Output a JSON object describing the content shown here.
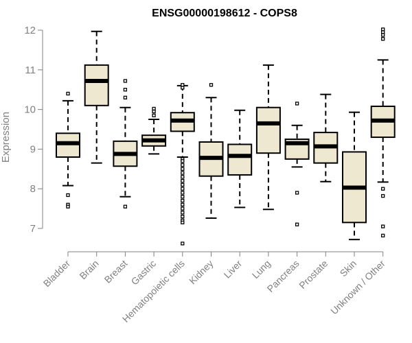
{
  "chart_data": {
    "type": "boxplot",
    "title": "ENSG00000198612 - COPS8",
    "ylabel": "Expression",
    "xlabel": "",
    "ylim": [
      6.5,
      12.25
    ],
    "yticks": [
      7,
      8,
      9,
      10,
      11,
      12
    ],
    "box_fill": "#efe8d0",
    "box_stroke": "#000000",
    "categories": [
      "Bladder",
      "Brain",
      "Breast",
      "Gastric",
      "Hematopoietic cells",
      "Kidney",
      "Liver",
      "Lung",
      "Pancreas",
      "Prostate",
      "Skin",
      "Unknown / Other"
    ],
    "boxes": [
      {
        "name": "Bladder",
        "whisker_low": 8.08,
        "q1": 8.8,
        "median": 9.15,
        "q3": 9.4,
        "whisker_high": 10.22,
        "outliers": [
          10.4,
          7.84,
          7.6,
          7.55
        ]
      },
      {
        "name": "Brain",
        "whisker_low": 8.65,
        "q1": 10.1,
        "median": 10.72,
        "q3": 11.12,
        "whisker_high": 11.97,
        "outliers": []
      },
      {
        "name": "Breast",
        "whisker_low": 7.8,
        "q1": 8.57,
        "median": 8.88,
        "q3": 9.2,
        "whisker_high": 10.05,
        "outliers": [
          10.72,
          10.5,
          10.3,
          7.55
        ]
      },
      {
        "name": "Gastric",
        "whisker_low": 8.88,
        "q1": 9.08,
        "median": 9.22,
        "q3": 9.35,
        "whisker_high": 9.75,
        "outliers": [
          10.02,
          9.95,
          9.85
        ]
      },
      {
        "name": "Hematopoietic cells",
        "whisker_low": 8.8,
        "q1": 9.45,
        "median": 9.72,
        "q3": 9.92,
        "whisker_high": 10.6,
        "outliers": [
          10.62,
          10.55,
          8.75,
          8.7,
          8.6,
          8.5,
          8.4,
          8.3,
          8.2,
          8.1,
          8.0,
          7.9,
          7.8,
          7.7,
          7.6,
          7.5,
          7.4,
          7.3,
          7.2,
          7.15,
          6.62
        ]
      },
      {
        "name": "Kidney",
        "whisker_low": 7.26,
        "q1": 8.32,
        "median": 8.78,
        "q3": 9.18,
        "whisker_high": 10.3,
        "outliers": [
          10.62
        ]
      },
      {
        "name": "Liver",
        "whisker_low": 7.53,
        "q1": 8.35,
        "median": 8.83,
        "q3": 9.12,
        "whisker_high": 9.98,
        "outliers": []
      },
      {
        "name": "Lung",
        "whisker_low": 7.48,
        "q1": 8.9,
        "median": 9.65,
        "q3": 10.05,
        "whisker_high": 11.12,
        "outliers": []
      },
      {
        "name": "Pancreas",
        "whisker_low": 8.55,
        "q1": 8.75,
        "median": 9.15,
        "q3": 9.25,
        "whisker_high": 9.6,
        "outliers": [
          10.15,
          7.9,
          7.1
        ]
      },
      {
        "name": "Prostate",
        "whisker_low": 8.18,
        "q1": 8.65,
        "median": 9.07,
        "q3": 9.42,
        "whisker_high": 10.38,
        "outliers": []
      },
      {
        "name": "Skin",
        "whisker_low": 6.72,
        "q1": 7.15,
        "median": 8.03,
        "q3": 8.93,
        "whisker_high": 9.93,
        "outliers": []
      },
      {
        "name": "Unknown / Other",
        "whisker_low": 8.17,
        "q1": 9.3,
        "median": 9.72,
        "q3": 10.08,
        "whisker_high": 11.25,
        "outliers": [
          12.02,
          11.95,
          11.88,
          11.78,
          8.0,
          7.82,
          7.05,
          6.82
        ]
      }
    ]
  }
}
